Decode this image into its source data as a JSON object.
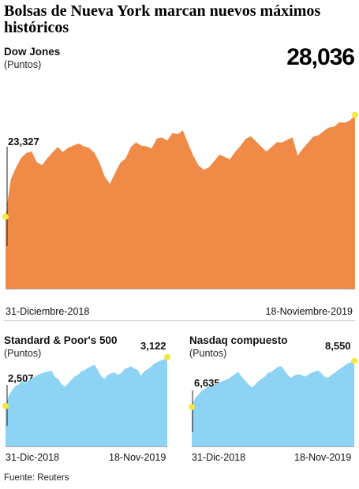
{
  "title": "Bolsas de Nueva York marcan nuevos máximos históricos",
  "source": "Fuente: Reuters",
  "colors": {
    "dow": "#F08A47",
    "sp": "#8DD3F3",
    "nasdaq": "#8DD3F3",
    "marker": "#F5E642"
  },
  "chart_data": [
    {
      "type": "area",
      "title": "Dow Jones",
      "ylabel": "(Puntos)",
      "start_label": "31-Diciembre-2018",
      "end_label": "18-Noviembre-2019",
      "start_value_label": "23,327",
      "end_value_label": "28,036",
      "ylim": [
        20000,
        30000
      ],
      "values": [
        23327,
        25050,
        25600,
        26050,
        26280,
        26350,
        25850,
        25720,
        26030,
        26310,
        26550,
        26330,
        26520,
        26620,
        26720,
        26590,
        26520,
        26300,
        25850,
        25200,
        24850,
        25350,
        25830,
        26020,
        26550,
        26770,
        26620,
        26590,
        26480,
        26950,
        27000,
        26850,
        27200,
        27150,
        27330,
        26720,
        26150,
        25700,
        25500,
        25620,
        25900,
        26200,
        26100,
        25980,
        26330,
        26590,
        26920,
        27050,
        26820,
        26570,
        26350,
        26550,
        26780,
        26760,
        26890,
        27000,
        26160,
        26480,
        26760,
        27040,
        27100,
        27290,
        27460,
        27500,
        27700,
        27680,
        27780,
        28036
      ]
    },
    {
      "type": "area",
      "title": "Standard & Poor's 500",
      "ylabel": "(Puntos)",
      "start_label": "31-Dic-2018",
      "end_label": "18-Nov-2019",
      "start_value_label": "2,507",
      "end_value_label": "3,122",
      "ylim": [
        2000,
        3200
      ],
      "values": [
        2507,
        2640,
        2710,
        2760,
        2780,
        2820,
        2800,
        2830,
        2860,
        2880,
        2905,
        2920,
        2935,
        2945,
        2950,
        2870,
        2850,
        2780,
        2750,
        2790,
        2840,
        2880,
        2900,
        2945,
        2960,
        2990,
        3010,
        3025,
        2960,
        2880,
        2850,
        2900,
        2920,
        2930,
        2900,
        2920,
        2970,
        2990,
        3010,
        2980,
        2965,
        2890,
        2940,
        2970,
        3000,
        3040,
        3060,
        3080,
        3095,
        3122
      ]
    },
    {
      "type": "area",
      "title": "Nasdaq compuesto",
      "ylabel": "(Puntos)",
      "start_label": "31-Dic-2018",
      "end_label": "18-Nov-2019",
      "start_value_label": "6,635",
      "end_value_label": "8,550",
      "ylim": [
        5000,
        8800
      ],
      "values": [
        6635,
        7000,
        7150,
        7300,
        7400,
        7500,
        7480,
        7550,
        7650,
        7700,
        7750,
        7800,
        7900,
        8000,
        8100,
        7900,
        7750,
        7600,
        7450,
        7550,
        7700,
        7800,
        7900,
        8050,
        8100,
        8200,
        8300,
        8330,
        8150,
        7950,
        7850,
        7950,
        8000,
        7970,
        7900,
        7960,
        8050,
        8100,
        8150,
        8050,
        7900,
        7850,
        7950,
        8050,
        8150,
        8250,
        8350,
        8450,
        8500,
        8550
      ]
    }
  ]
}
